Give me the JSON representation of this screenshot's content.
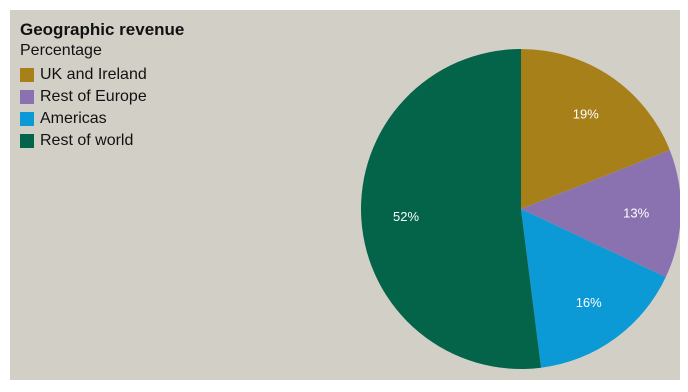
{
  "chart_data": {
    "type": "pie",
    "title": "Geographic revenue",
    "subtitle": "Percentage",
    "legend_position": "top-left",
    "slices": [
      {
        "label": "UK and Ireland",
        "value": 19,
        "value_label": "19%",
        "color": "#a8801a"
      },
      {
        "label": "Rest of Europe",
        "value": 13,
        "value_label": "13%",
        "color": "#8a72b0"
      },
      {
        "label": "Americas",
        "value": 16,
        "value_label": "16%",
        "color": "#0b9ad6"
      },
      {
        "label": "Rest of world",
        "value": 52,
        "value_label": "52%",
        "color": "#03644a"
      }
    ]
  }
}
